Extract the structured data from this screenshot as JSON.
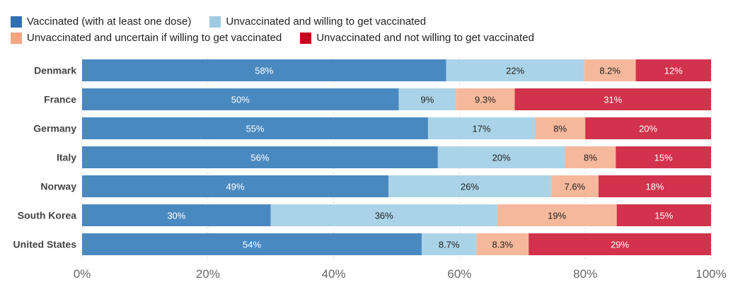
{
  "chart_data": {
    "type": "bar",
    "orientation": "horizontal",
    "stacked": true,
    "title": "",
    "xlabel": "",
    "ylabel": "",
    "xlim": [
      0,
      100
    ],
    "x_ticks": [
      "0%",
      "20%",
      "40%",
      "60%",
      "80%",
      "100%"
    ],
    "grid": true,
    "legend_position": "top-left",
    "categories": [
      "Denmark",
      "France",
      "Germany",
      "Italy",
      "Norway",
      "South Korea",
      "United States"
    ],
    "series": [
      {
        "name": "Vaccinated (with at least one dose)",
        "legend_color": "#2f70b1",
        "color": "#4a89c0",
        "label_color": "#ffffff",
        "values": [
          58,
          50,
          55,
          56,
          49,
          30,
          54
        ],
        "labels": [
          "58%",
          "50%",
          "55%",
          "56%",
          "49%",
          "30%",
          "54%"
        ]
      },
      {
        "name": "Unvaccinated and willing to get vaccinated",
        "legend_color": "#9ecae1",
        "color": "#aad3e7",
        "label_color": "#222222",
        "values": [
          22,
          9,
          17,
          20,
          26,
          36,
          8.7
        ],
        "labels": [
          "22%",
          "9%",
          "17%",
          "20%",
          "26%",
          "36%",
          "8.7%"
        ]
      },
      {
        "name": "Unvaccinated and uncertain if willing to get vaccinated",
        "legend_color": "#f4a582",
        "color": "#f6b89b",
        "label_color": "#222222",
        "values": [
          8.2,
          9.3,
          8,
          8,
          7.6,
          19,
          8.3
        ],
        "labels": [
          "8.2%",
          "9.3%",
          "8%",
          "8%",
          "7.6%",
          "19%",
          "8.3%"
        ]
      },
      {
        "name": "Unvaccinated and not willing to get vaccinated",
        "legend_color": "#ca0020",
        "color": "#d2324b",
        "label_color": "#ffffff",
        "values": [
          12,
          31,
          20,
          15,
          18,
          15,
          29
        ],
        "labels": [
          "12%",
          "31%",
          "20%",
          "15%",
          "18%",
          "15%",
          "29%"
        ]
      }
    ]
  }
}
